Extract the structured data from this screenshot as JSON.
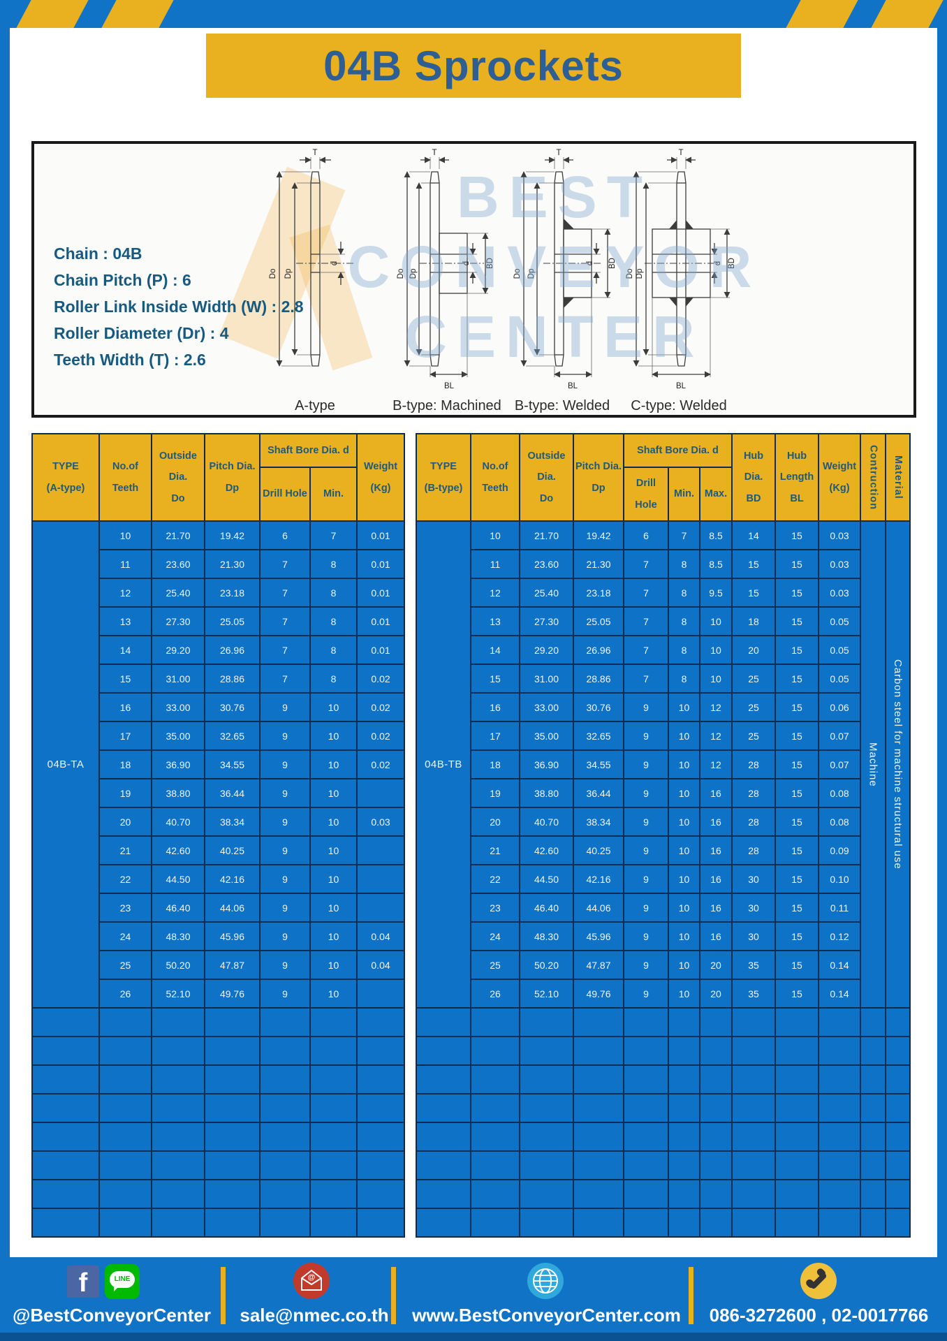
{
  "page": {
    "title": "04B Sprockets"
  },
  "specs": {
    "lines": [
      "Chain : 04B",
      "Chain Pitch (P) : 6",
      "Roller Link Inside Width (W) : 2.8",
      "Roller Diameter (Dr) : 4",
      "Teeth Width (T) : 2.6"
    ]
  },
  "diagram": {
    "captions": [
      "A-type",
      "B-type: Machined",
      "B-type: Welded",
      "C-type: Welded"
    ],
    "dim_labels": {
      "t": "T",
      "do": "Do",
      "dp": "Dp",
      "d": "d",
      "bd": "BD",
      "bl": "BL"
    },
    "watermark": [
      "BEST",
      "CONVEYOR",
      "CENTER"
    ]
  },
  "table_a": {
    "header": {
      "type": "TYPE\n(A-type)",
      "teeth": "No.of\nTeeth",
      "outside": "Outside\nDia.\nDo",
      "pitch": "Pitch Dia.\nDp",
      "shaft_bore": "Shaft Bore Dia. d",
      "drill": "Drill Hole",
      "min": "Min.",
      "weight": "Weight\n(Kg)"
    },
    "type_value": "04B-TA",
    "rows": [
      [
        "10",
        "21.70",
        "19.42",
        "6",
        "7",
        "0.01"
      ],
      [
        "11",
        "23.60",
        "21.30",
        "7",
        "8",
        "0.01"
      ],
      [
        "12",
        "25.40",
        "23.18",
        "7",
        "8",
        "0.01"
      ],
      [
        "13",
        "27.30",
        "25.05",
        "7",
        "8",
        "0.01"
      ],
      [
        "14",
        "29.20",
        "26.96",
        "7",
        "8",
        "0.01"
      ],
      [
        "15",
        "31.00",
        "28.86",
        "7",
        "8",
        "0.02"
      ],
      [
        "16",
        "33.00",
        "30.76",
        "9",
        "10",
        "0.02"
      ],
      [
        "17",
        "35.00",
        "32.65",
        "9",
        "10",
        "0.02"
      ],
      [
        "18",
        "36.90",
        "34.55",
        "9",
        "10",
        "0.02"
      ],
      [
        "19",
        "38.80",
        "36.44",
        "9",
        "10",
        ""
      ],
      [
        "20",
        "40.70",
        "38.34",
        "9",
        "10",
        "0.03"
      ],
      [
        "21",
        "42.60",
        "40.25",
        "9",
        "10",
        ""
      ],
      [
        "22",
        "44.50",
        "42.16",
        "9",
        "10",
        ""
      ],
      [
        "23",
        "46.40",
        "44.06",
        "9",
        "10",
        ""
      ],
      [
        "24",
        "48.30",
        "45.96",
        "9",
        "10",
        "0.04"
      ],
      [
        "25",
        "50.20",
        "47.87",
        "9",
        "10",
        "0.04"
      ],
      [
        "26",
        "52.10",
        "49.76",
        "9",
        "10",
        ""
      ]
    ],
    "empty_rows": 8
  },
  "table_b": {
    "header": {
      "type": "TYPE\n(B-type)",
      "teeth": "No.of\nTeeth",
      "outside": "Outside\nDia.\nDo",
      "pitch": "Pitch Dia.\nDp",
      "shaft_bore": "Shaft Bore Dia. d",
      "drill": "Drill Hole",
      "min": "Min.",
      "max": "Max.",
      "hub_dia": "Hub Dia.\nBD",
      "hub_len": "Hub\nLength\nBL",
      "weight": "Weight\n(Kg)",
      "construction": "Contruction",
      "material": "Material"
    },
    "type_value": "04B-TB",
    "construction_value": "Machine",
    "material_value": "Carbon steel for machine structural use",
    "rows": [
      [
        "10",
        "21.70",
        "19.42",
        "6",
        "7",
        "8.5",
        "14",
        "15",
        "0.03"
      ],
      [
        "11",
        "23.60",
        "21.30",
        "7",
        "8",
        "8.5",
        "15",
        "15",
        "0.03"
      ],
      [
        "12",
        "25.40",
        "23.18",
        "7",
        "8",
        "9.5",
        "15",
        "15",
        "0.03"
      ],
      [
        "13",
        "27.30",
        "25.05",
        "7",
        "8",
        "10",
        "18",
        "15",
        "0.05"
      ],
      [
        "14",
        "29.20",
        "26.96",
        "7",
        "8",
        "10",
        "20",
        "15",
        "0.05"
      ],
      [
        "15",
        "31.00",
        "28.86",
        "7",
        "8",
        "10",
        "25",
        "15",
        "0.05"
      ],
      [
        "16",
        "33.00",
        "30.76",
        "9",
        "10",
        "12",
        "25",
        "15",
        "0.06"
      ],
      [
        "17",
        "35.00",
        "32.65",
        "9",
        "10",
        "12",
        "25",
        "15",
        "0.07"
      ],
      [
        "18",
        "36.90",
        "34.55",
        "9",
        "10",
        "12",
        "28",
        "15",
        "0.07"
      ],
      [
        "19",
        "38.80",
        "36.44",
        "9",
        "10",
        "16",
        "28",
        "15",
        "0.08"
      ],
      [
        "20",
        "40.70",
        "38.34",
        "9",
        "10",
        "16",
        "28",
        "15",
        "0.08"
      ],
      [
        "21",
        "42.60",
        "40.25",
        "9",
        "10",
        "16",
        "28",
        "15",
        "0.09"
      ],
      [
        "22",
        "44.50",
        "42.16",
        "9",
        "10",
        "16",
        "30",
        "15",
        "0.10"
      ],
      [
        "23",
        "46.40",
        "44.06",
        "9",
        "10",
        "16",
        "30",
        "15",
        "0.11"
      ],
      [
        "24",
        "48.30",
        "45.96",
        "9",
        "10",
        "16",
        "30",
        "15",
        "0.12"
      ],
      [
        "25",
        "50.20",
        "47.87",
        "9",
        "10",
        "20",
        "35",
        "15",
        "0.14"
      ],
      [
        "26",
        "52.10",
        "49.76",
        "9",
        "10",
        "20",
        "35",
        "15",
        "0.14"
      ]
    ],
    "empty_rows": 8
  },
  "footer": {
    "facebook_letter": "f",
    "line_badge": "LINE",
    "email_at": "@",
    "social_label": "@BestConveyorCenter",
    "email_label": "sale@nmec.co.th",
    "web_label": "www.BestConveyorCenter.com",
    "phone_label": "086-3272600 , 02-0017766"
  },
  "colors": {
    "frame_blue": "#1173c5",
    "cell_blue": "#0e72c6",
    "gold": "#e9b01f",
    "border_navy": "#0c2d52",
    "header_text": "#1f5a7d",
    "title_text": "#2d5f94",
    "footer_strip": "#0a5390"
  }
}
